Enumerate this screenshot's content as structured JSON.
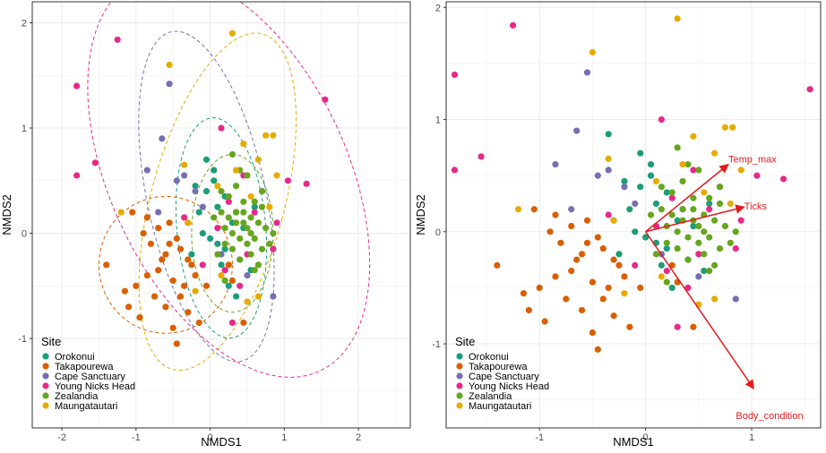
{
  "chart_data": {
    "colors": {
      "Orokonui": "#1b9e77",
      "Takapourewa": "#d95f02",
      "Cape Sanctuary": "#7570b3",
      "Young Nicks Head": "#e7298a",
      "Zealandia": "#66a61e",
      "Maungatautari": "#e6ab02",
      "vector": "#e41a1c",
      "grid": "#ebebeb",
      "panel_border": "#333333"
    },
    "panels": [
      {
        "type": "scatter",
        "title": "",
        "xlabel": "NMDS1",
        "ylabel": "NMDS2",
        "xlim": [
          -2.4,
          2.7
        ],
        "ylim": [
          -1.85,
          2.2
        ],
        "xticks": [
          -2,
          -1,
          0,
          1,
          2
        ],
        "yticks": [
          -1,
          0,
          1,
          2
        ],
        "grid": true,
        "legend": {
          "title": "Site",
          "position": "bottom-left",
          "entries": [
            "Orokonui",
            "Takapourewa",
            "Cape Sanctuary",
            "Young Nicks Head",
            "Zealandia",
            "Maungatautari"
          ]
        },
        "ellipses": [
          {
            "series": "Orokonui",
            "cx": 0.15,
            "cy": 0.05,
            "rx": 0.6,
            "ry": 1.05,
            "angle": 5
          },
          {
            "series": "Takapourewa",
            "cx": -0.6,
            "cy": -0.3,
            "rx": 0.9,
            "ry": 0.65,
            "angle": 0
          },
          {
            "series": "Cape Sanctuary",
            "cx": -0.05,
            "cy": 0.35,
            "rx": 0.8,
            "ry": 1.6,
            "angle": 12
          },
          {
            "series": "Young Nicks Head",
            "cx": 0.25,
            "cy": 0.55,
            "rx": 1.6,
            "ry": 2.05,
            "angle": 25
          },
          {
            "series": "Zealandia",
            "cx": 0.3,
            "cy": 0.0,
            "rx": 0.55,
            "ry": 0.75,
            "angle": 0
          },
          {
            "series": "Maungatautari",
            "cx": 0.1,
            "cy": 0.3,
            "rx": 0.9,
            "ry": 1.65,
            "angle": -15
          }
        ],
        "series": [
          {
            "name": "Orokonui",
            "x": [
              -0.2,
              -0.05,
              0.05,
              0.2,
              0.35,
              -0.15,
              0.1,
              0.3,
              0.45,
              -0.1,
              0.0,
              0.2,
              0.4,
              0.55,
              -0.25,
              0.15,
              0.25,
              0.05,
              -0.05,
              0.6,
              0.35,
              0.1
            ],
            "y": [
              0.45,
              0.4,
              0.5,
              0.35,
              0.2,
              0.2,
              0.25,
              0.1,
              0.05,
              0.0,
              -0.05,
              -0.15,
              -0.25,
              -0.35,
              -0.2,
              -0.3,
              -0.5,
              0.6,
              0.7,
              0.25,
              -0.6,
              -0.1
            ]
          },
          {
            "name": "Takapourewa",
            "x": [
              -1.4,
              -1.15,
              -1.0,
              -0.85,
              -0.7,
              -0.6,
              -0.55,
              -0.45,
              -0.4,
              -0.3,
              -0.25,
              -0.2,
              -0.9,
              -0.8,
              -0.65,
              -0.5,
              -0.35,
              -1.1,
              -0.95,
              -0.75,
              -0.6,
              -0.5,
              -0.3,
              -0.15,
              -0.7,
              -0.55,
              -0.45,
              -1.05,
              -0.85,
              -0.4,
              0.3,
              0.45,
              -0.05,
              0.25
            ],
            "y": [
              -0.3,
              -0.55,
              -0.5,
              -0.4,
              -0.35,
              -0.2,
              -0.1,
              -0.05,
              -0.15,
              -0.25,
              -0.3,
              -0.4,
              0.0,
              -0.1,
              -0.25,
              -0.45,
              -0.5,
              -0.7,
              -0.8,
              -0.6,
              -0.7,
              -0.9,
              -0.75,
              -0.85,
              0.05,
              0.1,
              -1.05,
              0.2,
              0.15,
              -0.6,
              -0.45,
              -0.85,
              -0.5,
              -0.3
            ]
          },
          {
            "name": "Cape Sanctuary",
            "x": [
              -0.55,
              -0.65,
              -0.35,
              -0.85,
              -0.2,
              -0.7,
              -0.3,
              -0.1,
              0.5,
              0.85,
              0.15,
              -0.45
            ],
            "y": [
              1.42,
              0.9,
              0.55,
              0.6,
              0.4,
              0.2,
              0.1,
              0.25,
              -0.4,
              -0.6,
              -0.2,
              0.5
            ]
          },
          {
            "name": "Young Nicks Head",
            "x": [
              -1.8,
              -1.55,
              -1.8,
              -1.25,
              1.55,
              1.3,
              1.05,
              0.1,
              0.35,
              0.45,
              0.6,
              0.7,
              0.85,
              0.2,
              0.5,
              -0.35,
              0.25,
              0.9,
              0.4,
              -0.1,
              0.3,
              0.15
            ],
            "y": [
              1.4,
              0.67,
              0.55,
              1.84,
              1.27,
              0.47,
              0.5,
              0.05,
              0.2,
              0.55,
              0.2,
              0.4,
              -0.15,
              -0.35,
              -0.2,
              0.15,
              0.3,
              0.1,
              -0.5,
              -0.3,
              -0.85,
              1.0
            ]
          },
          {
            "name": "Zealandia",
            "x": [
              0.05,
              0.15,
              0.2,
              0.25,
              0.3,
              0.35,
              0.4,
              0.45,
              0.5,
              0.55,
              0.6,
              0.65,
              0.7,
              0.75,
              0.8,
              0.1,
              0.2,
              0.3,
              0.4,
              0.5,
              0.6,
              0.7,
              0.25,
              0.35,
              0.45,
              0.55,
              0.65,
              0.15,
              0.5,
              0.3,
              0.4,
              0.6,
              0.2,
              0.35,
              0.45,
              0.55,
              0.7,
              0.85
            ],
            "y": [
              0.15,
              0.2,
              0.05,
              0.15,
              0.0,
              0.1,
              -0.05,
              0.2,
              0.05,
              0.15,
              -0.05,
              0.1,
              0.25,
              0.05,
              -0.1,
              -0.2,
              -0.1,
              -0.15,
              -0.25,
              -0.1,
              0.3,
              0.4,
              0.35,
              0.45,
              0.3,
              -0.2,
              -0.3,
              0.4,
              0.55,
              0.75,
              0.6,
              -0.35,
              -0.45,
              0.2,
              0.1,
              0.0,
              -0.15,
              0.0
            ]
          },
          {
            "name": "Maungatautari",
            "x": [
              -1.2,
              -0.55,
              -0.35,
              -0.3,
              0.3,
              0.1,
              0.75,
              0.85,
              0.65,
              0.45,
              0.9,
              0.55,
              -0.2,
              0.15,
              0.65,
              0.8,
              0.35,
              0.5
            ],
            "y": [
              0.2,
              1.6,
              0.65,
              0.1,
              1.9,
              0.45,
              0.93,
              0.93,
              0.7,
              0.85,
              0.55,
              0.35,
              -0.55,
              -0.4,
              -0.6,
              0.25,
              0.6,
              -0.65
            ]
          }
        ]
      },
      {
        "type": "scatter",
        "title": "",
        "xlabel": "NMDS1",
        "ylabel": "NMDS2",
        "xlim": [
          -1.88,
          1.65
        ],
        "ylim": [
          -1.75,
          2.05
        ],
        "xticks": [
          -1,
          0,
          1
        ],
        "yticks": [
          -1,
          0,
          1,
          2
        ],
        "grid": true,
        "legend": {
          "title": "Site",
          "position": "bottom-left",
          "entries": [
            "Orokonui",
            "Takapourewa",
            "Cape Sanctuary",
            "Young Nicks Head",
            "Zealandia",
            "Maungatautari"
          ]
        },
        "vectors": [
          {
            "label": "Temp_max",
            "x": 0.78,
            "y": 0.6
          },
          {
            "label": "Ticks",
            "x": 0.93,
            "y": 0.22
          },
          {
            "label": "Body_condition",
            "x": 1.02,
            "y": -1.4
          }
        ],
        "series": [
          {
            "name": "Orokonui",
            "x": [
              -0.2,
              -0.05,
              0.05,
              0.2,
              0.35,
              -0.15,
              0.1,
              0.3,
              0.45,
              -0.1,
              0.0,
              0.2,
              0.4,
              0.55,
              -0.25,
              0.15,
              0.25,
              0.05,
              -0.05,
              0.6,
              -0.35,
              0.1
            ],
            "y": [
              0.45,
              0.4,
              0.5,
              0.35,
              0.2,
              0.2,
              0.25,
              0.1,
              0.05,
              0.0,
              -0.05,
              -0.15,
              -0.25,
              -0.35,
              -0.2,
              -0.3,
              -0.5,
              0.6,
              0.7,
              0.25,
              0.87,
              -0.1
            ]
          },
          {
            "name": "Takapourewa",
            "x": [
              -1.4,
              -1.15,
              -1.0,
              -0.85,
              -0.7,
              -0.6,
              -0.55,
              -0.45,
              -0.4,
              -0.3,
              -0.25,
              -0.2,
              -0.9,
              -0.8,
              -0.65,
              -0.5,
              -0.35,
              -1.1,
              -0.95,
              -0.75,
              -0.6,
              -0.5,
              -0.3,
              -0.15,
              -0.7,
              -0.55,
              -0.45,
              -1.05,
              -0.85,
              -0.4,
              0.3,
              0.45,
              -0.05,
              0.25
            ],
            "y": [
              -0.3,
              -0.55,
              -0.5,
              -0.4,
              -0.35,
              -0.2,
              -0.1,
              -0.05,
              -0.15,
              -0.25,
              -0.3,
              -0.4,
              0.0,
              -0.1,
              -0.25,
              -0.45,
              -0.5,
              -0.7,
              -0.8,
              -0.6,
              -0.7,
              -0.9,
              -0.75,
              -0.85,
              0.05,
              0.1,
              -1.05,
              0.2,
              0.15,
              -0.6,
              -0.45,
              -0.85,
              -0.5,
              -0.3
            ]
          },
          {
            "name": "Cape Sanctuary",
            "x": [
              -0.55,
              -0.65,
              -0.35,
              -0.85,
              -0.2,
              -0.7,
              -0.3,
              -0.1,
              0.5,
              0.85,
              0.15,
              -0.45
            ],
            "y": [
              1.42,
              0.9,
              0.55,
              0.6,
              0.4,
              0.2,
              0.1,
              0.25,
              -0.4,
              -0.6,
              -0.2,
              0.5
            ]
          },
          {
            "name": "Young Nicks Head",
            "x": [
              -1.8,
              -1.55,
              -1.8,
              -1.25,
              1.55,
              1.3,
              1.05,
              0.1,
              0.35,
              0.45,
              0.6,
              0.7,
              0.85,
              0.2,
              0.5,
              -0.35,
              0.25,
              0.9,
              0.4,
              -0.1,
              0.3,
              0.15
            ],
            "y": [
              1.4,
              0.67,
              0.55,
              1.84,
              1.27,
              0.47,
              0.5,
              0.05,
              0.2,
              0.55,
              0.2,
              0.4,
              -0.15,
              -0.35,
              -0.2,
              0.15,
              0.3,
              0.1,
              -0.5,
              -0.3,
              -0.85,
              1.0
            ]
          },
          {
            "name": "Zealandia",
            "x": [
              0.05,
              0.15,
              0.2,
              0.25,
              0.3,
              0.35,
              0.4,
              0.45,
              0.5,
              0.55,
              0.6,
              0.65,
              0.7,
              0.75,
              0.8,
              0.1,
              0.2,
              0.3,
              0.4,
              0.5,
              0.6,
              0.7,
              0.25,
              0.35,
              0.45,
              0.55,
              0.65,
              0.15,
              0.5,
              0.3,
              0.4,
              0.6,
              0.2,
              0.35,
              0.45,
              0.55,
              0.7,
              0.85
            ],
            "y": [
              0.15,
              0.2,
              0.05,
              0.15,
              0.0,
              0.1,
              -0.05,
              0.2,
              0.05,
              0.15,
              -0.05,
              0.1,
              0.25,
              0.05,
              -0.1,
              -0.2,
              -0.1,
              -0.15,
              -0.25,
              -0.1,
              0.3,
              0.4,
              0.35,
              0.45,
              0.3,
              -0.2,
              -0.3,
              0.4,
              0.55,
              0.75,
              0.6,
              -0.35,
              -0.45,
              0.2,
              0.1,
              0.0,
              -0.15,
              0.0
            ]
          },
          {
            "name": "Maungatautari",
            "x": [
              -1.2,
              -0.5,
              -0.35,
              -0.3,
              0.3,
              0.1,
              0.75,
              0.82,
              0.65,
              0.45,
              0.9,
              0.55,
              -0.2,
              0.15,
              0.65,
              0.8,
              0.35,
              0.5
            ],
            "y": [
              0.2,
              1.6,
              0.65,
              0.1,
              1.9,
              0.45,
              0.93,
              0.93,
              0.7,
              0.85,
              0.55,
              0.35,
              -0.55,
              -0.4,
              -0.6,
              0.25,
              0.6,
              -0.65
            ]
          }
        ]
      }
    ]
  }
}
